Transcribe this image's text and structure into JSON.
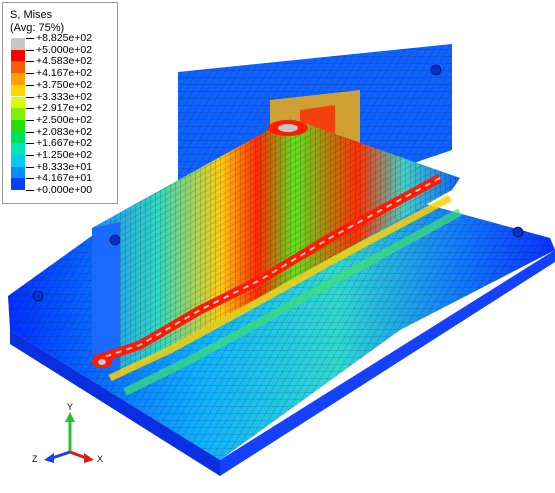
{
  "legend": {
    "title": "S, Mises",
    "subtitle": "(Avg: 75%)",
    "entries": [
      {
        "label": "+8.825e+02",
        "color": "#c8c8c8"
      },
      {
        "label": "+5.000e+02",
        "color": "#ff0000"
      },
      {
        "label": "+4.583e+02",
        "color": "#ff5a00"
      },
      {
        "label": "+4.167e+02",
        "color": "#ff9f00"
      },
      {
        "label": "+3.750e+02",
        "color": "#ffd400"
      },
      {
        "label": "+3.333e+02",
        "color": "#d4ff00"
      },
      {
        "label": "+2.917e+02",
        "color": "#7ef000"
      },
      {
        "label": "+2.500e+02",
        "color": "#22e000"
      },
      {
        "label": "+2.083e+02",
        "color": "#00e060"
      },
      {
        "label": "+1.667e+02",
        "color": "#00e6b8"
      },
      {
        "label": "+1.250e+02",
        "color": "#00ccf0"
      },
      {
        "label": "+8.333e+01",
        "color": "#008cff"
      },
      {
        "label": "+4.167e+01",
        "color": "#0040ff"
      },
      {
        "label": "+0.000e+00",
        "color": "#0000c8"
      }
    ]
  },
  "triad": {
    "y_label": "Y",
    "z_label": "Z",
    "x_label": "X",
    "y_color": "#2fbf2f",
    "z_color": "#1a3cff",
    "x_color": "#e01a1a"
  }
}
